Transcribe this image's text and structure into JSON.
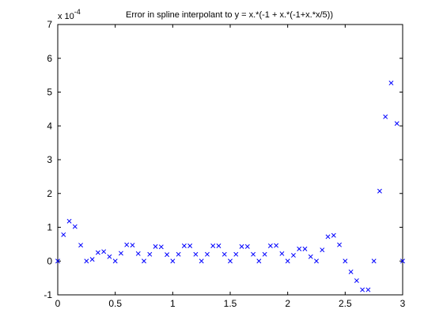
{
  "chart_data": {
    "type": "scatter",
    "title": "Error in spline interpolant to y = x.*(-1 + x.*(-1+x.*x/5))",
    "xlabel": "",
    "ylabel": "",
    "scale_label": "x 10",
    "scale_exponent": "-4",
    "xlim": [
      0,
      3
    ],
    "ylim": [
      -1,
      7
    ],
    "xticks": [
      0,
      0.5,
      1,
      1.5,
      2,
      2.5,
      3
    ],
    "xtick_labels": [
      "0",
      "0.5",
      "1",
      "1.5",
      "2",
      "2.5",
      "3"
    ],
    "yticks": [
      -1,
      0,
      1,
      2,
      3,
      4,
      5,
      6,
      7
    ],
    "ytick_labels": [
      "-1",
      "0",
      "1",
      "2",
      "3",
      "4",
      "5",
      "6",
      "7"
    ],
    "marker": "x",
    "marker_color": "#0000ff",
    "grid": false,
    "series": [
      {
        "x": [
          0,
          0.05,
          0.1,
          0.15,
          0.2,
          0.25,
          0.3,
          0.35,
          0.4,
          0.45,
          0.5,
          0.55,
          0.6,
          0.65,
          0.7,
          0.75,
          0.8,
          0.85,
          0.9,
          0.95,
          1.0,
          1.05,
          1.1,
          1.15,
          1.2,
          1.25,
          1.3,
          1.35,
          1.4,
          1.45,
          1.5,
          1.55,
          1.6,
          1.65,
          1.7,
          1.75,
          1.8,
          1.85,
          1.9,
          1.95,
          2.0,
          2.05,
          2.1,
          2.15,
          2.2,
          2.25,
          2.3,
          2.35,
          2.4,
          2.45,
          2.5,
          2.55,
          2.6,
          2.65,
          2.7,
          2.75,
          2.8,
          2.85,
          2.9,
          2.95,
          3.0
        ],
        "y": [
          0,
          0.78,
          1.18,
          1.02,
          0.47,
          0,
          0.05,
          0.25,
          0.28,
          0.13,
          0,
          0.23,
          0.48,
          0.47,
          0.22,
          0,
          0.2,
          0.43,
          0.42,
          0.19,
          0,
          0.2,
          0.45,
          0.45,
          0.2,
          0,
          0.2,
          0.45,
          0.45,
          0.2,
          0,
          0.2,
          0.43,
          0.43,
          0.2,
          0,
          0.2,
          0.45,
          0.46,
          0.22,
          0,
          0.17,
          0.36,
          0.36,
          0.13,
          0,
          0.33,
          0.72,
          0.76,
          0.48,
          0,
          -0.32,
          -0.58,
          -0.85,
          -0.85,
          0,
          2.07,
          4.27,
          5.27,
          4.07,
          0
        ]
      }
    ]
  }
}
